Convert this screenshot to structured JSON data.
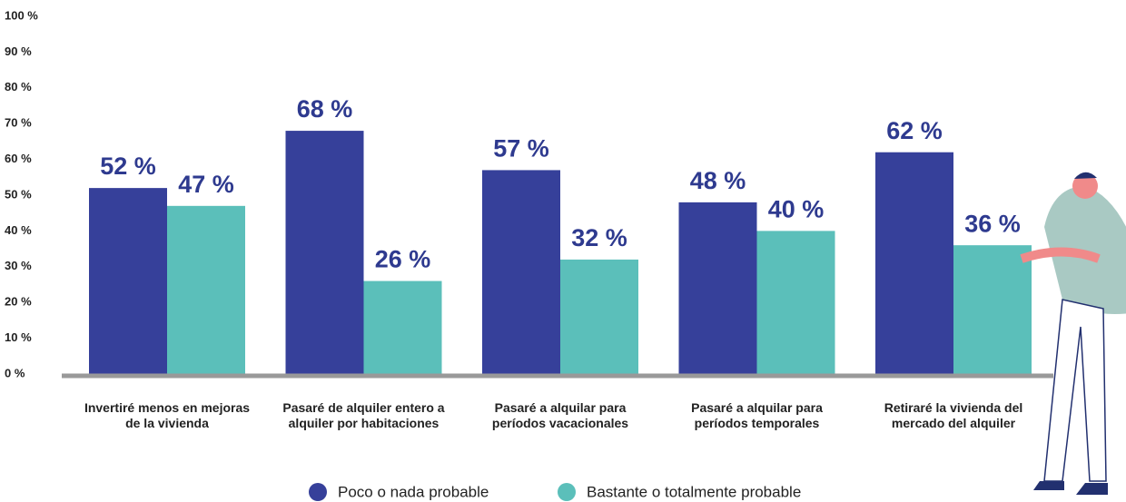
{
  "chart_data": {
    "type": "bar",
    "categories": [
      "Invertiré menos en mejoras de la vivienda",
      "Pasaré de alquiler entero a alquiler por habitaciones",
      "Pasaré a alquilar para períodos vacacionales",
      "Pasaré a alquilar para períodos temporales",
      "Retiraré la vivienda del mercado del alquiler"
    ],
    "series": [
      {
        "name": "Poco o nada probable",
        "color": "#36409a",
        "values": [
          52,
          68,
          57,
          48,
          62
        ],
        "value_labels": [
          "52 %",
          "68 %",
          "57 %",
          "48 %",
          "62 %"
        ]
      },
      {
        "name": "Bastante o totalmente probable",
        "color": "#5bbfba",
        "values": [
          47,
          26,
          32,
          40,
          36
        ],
        "value_labels": [
          "47 %",
          "26 %",
          "32 %",
          "40 %",
          "36 %"
        ]
      }
    ],
    "ylim": [
      0,
      100
    ],
    "yticks": [
      {
        "value": 0,
        "label": "0 %"
      },
      {
        "value": 10,
        "label": "10 %"
      },
      {
        "value": 20,
        "label": "20 %"
      },
      {
        "value": 30,
        "label": "30 %"
      },
      {
        "value": 40,
        "label": "40 %"
      },
      {
        "value": 50,
        "label": "50 %"
      },
      {
        "value": 60,
        "label": "60 %"
      },
      {
        "value": 70,
        "label": "70 %"
      },
      {
        "value": 80,
        "label": "80 %"
      },
      {
        "value": 90,
        "label": "90 %"
      },
      {
        "value": 100,
        "label": "100 %"
      }
    ],
    "grid": false
  }
}
